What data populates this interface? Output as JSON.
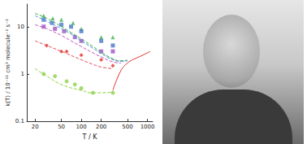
{
  "chart_data": {
    "type": "scatter",
    "xlabel": "T / K",
    "ylabel": "k(T) / 10⁻¹¹ cm³ molecule⁻¹ s⁻¹",
    "log": true,
    "grid": false,
    "xlim": [
      15,
      1200
    ],
    "ylim": [
      0.1,
      30
    ],
    "xticks": [
      20,
      50,
      100,
      200,
      500,
      1000
    ],
    "yticks": [
      0.1,
      1,
      10
    ],
    "series": [
      {
        "type": "scatter",
        "color": "#3cb44b",
        "marker": "triangle",
        "x": [
          27,
          37,
          50,
          75,
          100,
          200,
          300
        ],
        "values": [
          17,
          15,
          14,
          12,
          9,
          6,
          6
        ]
      },
      {
        "type": "scatter",
        "color": "#4a78c8",
        "marker": "square",
        "x": [
          27,
          36,
          50,
          70,
          100,
          200,
          300
        ],
        "values": [
          14,
          12,
          11,
          10,
          8,
          5,
          4
        ]
      },
      {
        "type": "scatter",
        "color": "#a050c8",
        "marker": "square",
        "x": [
          27,
          40,
          55,
          80,
          100,
          200,
          300
        ],
        "values": [
          10,
          9,
          8,
          6,
          5,
          3,
          3
        ]
      },
      {
        "type": "scatter",
        "color": "#e0302a",
        "marker": "diamond",
        "x": [
          30,
          50,
          60,
          100,
          200,
          300
        ],
        "values": [
          4,
          3,
          3,
          2.5,
          2,
          1.5
        ]
      },
      {
        "type": "scatter",
        "color": "#8fd14f",
        "marker": "circle",
        "x": [
          27,
          40,
          60,
          80,
          100,
          150,
          300
        ],
        "values": [
          1,
          0.9,
          0.7,
          0.6,
          0.5,
          0.4,
          0.4
        ]
      },
      {
        "type": "line",
        "color": "#3aa84a",
        "line_style": "dashed",
        "x": [
          20,
          30,
          50,
          70,
          100,
          150,
          200,
          300,
          400,
          500
        ],
        "values": [
          19,
          15,
          10,
          7.5,
          5.5,
          3.8,
          2.9,
          2.1,
          1.9,
          1.95
        ]
      },
      {
        "type": "line",
        "color": "#4a8fd0",
        "line_style": "dashed",
        "x": [
          20,
          30,
          50,
          70,
          100,
          150,
          200,
          300,
          400,
          500
        ],
        "values": [
          17,
          13,
          9,
          7,
          5,
          3.5,
          2.7,
          2.0,
          1.85,
          1.9
        ]
      },
      {
        "type": "line",
        "color": "#c050c0",
        "line_style": "dashed",
        "x": [
          20,
          30,
          50,
          70,
          100,
          150,
          200,
          300,
          400
        ],
        "values": [
          11,
          9,
          6.5,
          5,
          3.8,
          2.8,
          2.3,
          1.8,
          1.7
        ]
      },
      {
        "type": "line",
        "color": "#e84a5a",
        "line_style": "dashed",
        "x": [
          20,
          30,
          50,
          100,
          150,
          200,
          300
        ],
        "values": [
          5,
          4,
          3,
          2,
          1.6,
          1.4,
          1.3
        ]
      },
      {
        "type": "line",
        "color": "#8cd03c",
        "line_style": "dashed",
        "x": [
          20,
          30,
          50,
          100,
          150,
          200,
          300
        ],
        "values": [
          1.3,
          0.9,
          0.6,
          0.45,
          0.4,
          0.4,
          0.42
        ]
      },
      {
        "type": "line",
        "color": "#e0302a",
        "line_style": "solid",
        "x": [
          300,
          400,
          500,
          600,
          800,
          1000,
          1100
        ],
        "values": [
          0.45,
          1.2,
          1.7,
          2,
          2.4,
          2.8,
          3
        ]
      }
    ]
  }
}
